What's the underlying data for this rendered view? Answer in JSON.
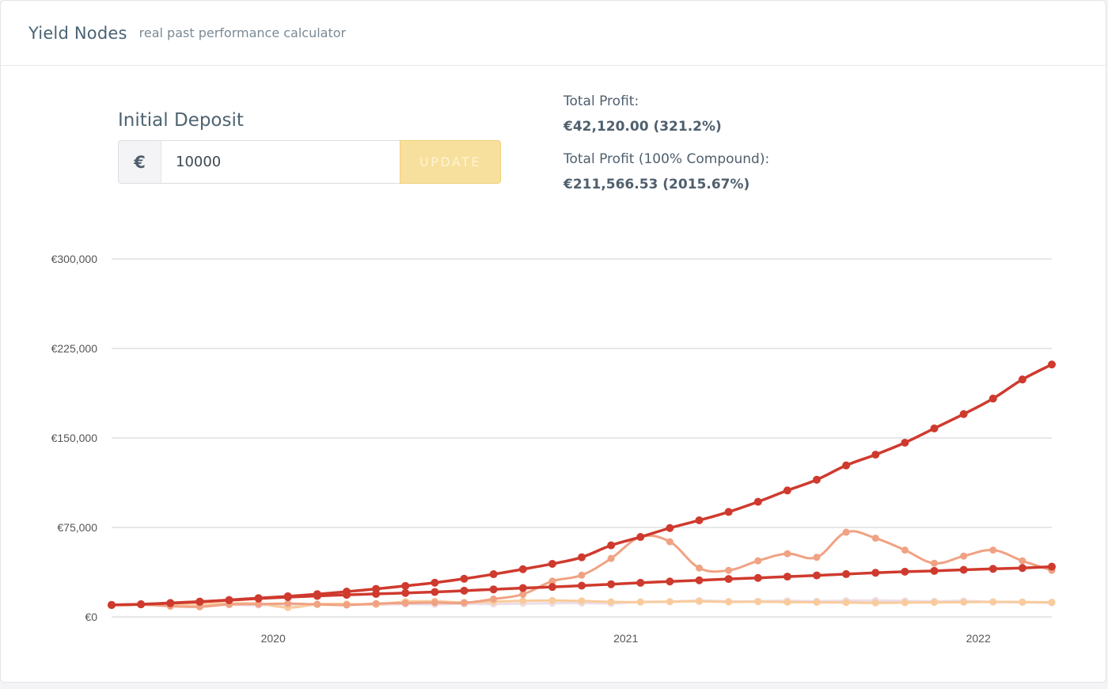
{
  "header": {
    "brand": "Yield Nodes",
    "tagline": "real past performance calculator"
  },
  "deposit": {
    "label": "Initial Deposit",
    "currency_symbol": "€",
    "value": "10000",
    "button_label": "UPDATE"
  },
  "summary": {
    "total_profit_label": "Total Profit:",
    "total_profit_value": "€42,120.00 (321.2%)",
    "compound_label": "Total Profit (100% Compound):",
    "compound_value": "€211,566.53 (2015.67%)"
  },
  "chart_data": {
    "type": "line",
    "ylim": [
      0,
      300000
    ],
    "y_ticks": [
      0,
      75000,
      150000,
      225000,
      300000
    ],
    "y_tick_labels": [
      "€0",
      "€75,000",
      "€150,000",
      "€225,000",
      "€300,000"
    ],
    "x_start": "2019-07",
    "x_tick_labels": [
      "2020",
      "2021",
      "2022"
    ],
    "x_tick_months": [
      6,
      18,
      30
    ],
    "months": 33,
    "grid": true,
    "series": [
      {
        "color": "#cf3a2e",
        "values": [
          10000,
          10600,
          11500,
          12800,
          14200,
          15800,
          17300,
          19100,
          21200,
          23500,
          26000,
          28700,
          32000,
          35800,
          40000,
          44500,
          50000,
          60000,
          67000,
          74500,
          81000,
          88000,
          96500,
          106000,
          115000,
          127000,
          136000,
          146000,
          158000,
          170000,
          183000,
          199000,
          211566
        ]
      },
      {
        "color": "#cf3a2e",
        "values": [
          10000,
          10600,
          11700,
          12800,
          14000,
          15400,
          16600,
          17600,
          18500,
          19300,
          20100,
          20900,
          22000,
          23100,
          24200,
          25100,
          26200,
          27400,
          28600,
          29700,
          30700,
          31800,
          32700,
          33800,
          34800,
          35900,
          37000,
          37900,
          38600,
          39500,
          40300,
          41000,
          42120
        ]
      },
      {
        "color": "#f0a283",
        "values": [
          10000,
          10400,
          9000,
          8500,
          10500,
          10700,
          11200,
          10500,
          10000,
          11200,
          11600,
          12000,
          11800,
          15000,
          19000,
          30000,
          35000,
          49000,
          67000,
          63000,
          41000,
          39000,
          47000,
          53000,
          50000,
          71000,
          66000,
          56000,
          45000,
          51000,
          56000,
          47000,
          39000
        ]
      },
      {
        "color": "#f9cb9c",
        "values": [
          10000,
          10300,
          10700,
          10900,
          11300,
          11200,
          7800,
          10600,
          10900,
          10500,
          12800,
          13100,
          12200,
          12800,
          13500,
          13800,
          13400,
          12600,
          12500,
          12800,
          13100,
          12600,
          12800,
          12400,
          12300,
          12100,
          11800,
          12000,
          12200,
          12400,
          12600,
          12500,
          12300
        ]
      },
      {
        "color": "#ecdde8",
        "values": [
          10000,
          10200,
          10000,
          10400,
          10200,
          9900,
          10100,
          10800,
          10600,
          10300,
          10700,
          10500,
          11000,
          10800,
          11200,
          11500,
          11600,
          11300,
          12500,
          12800,
          13800,
          13000,
          13200,
          13500,
          13200,
          13600,
          13800,
          13400,
          13100,
          13400,
          12600,
          12200,
          11800
        ]
      }
    ]
  }
}
